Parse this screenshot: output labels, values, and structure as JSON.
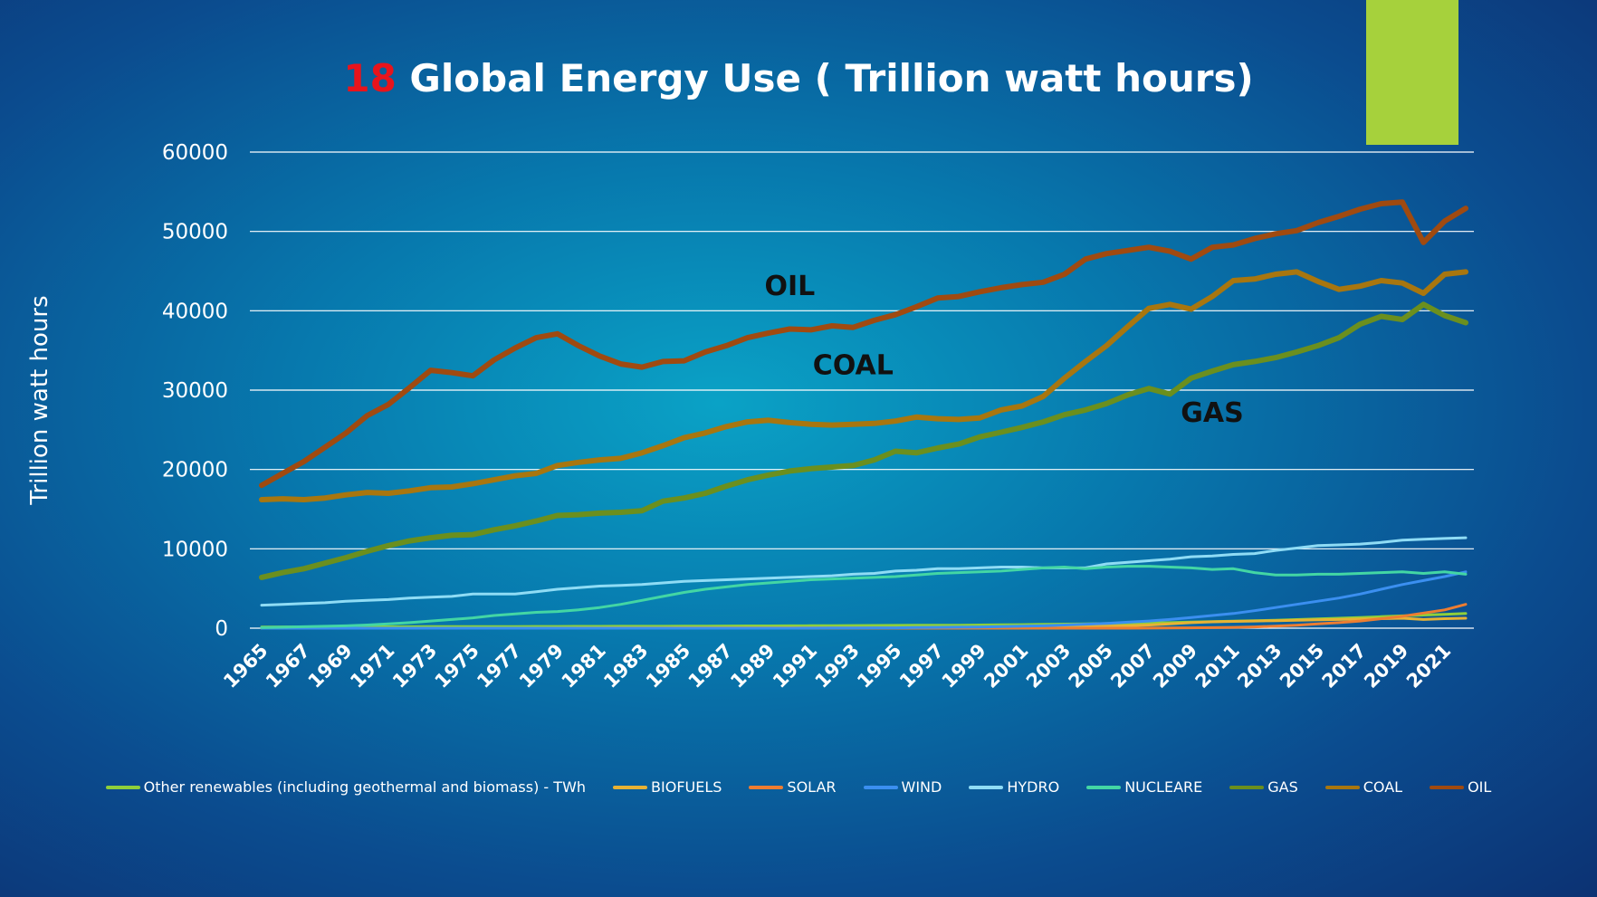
{
  "title": {
    "number": "18",
    "text": " Global Energy Use ( Trillion watt hours)"
  },
  "chart_data": {
    "type": "line",
    "title": "18 Global Energy Use ( Trillion watt hours)",
    "xlabel": "",
    "ylabel": "Trillion watt hours",
    "ylim": [
      0,
      60000
    ],
    "y_ticks": [
      0,
      10000,
      20000,
      30000,
      40000,
      50000,
      60000
    ],
    "x_tick_labels": [
      "1965",
      "1967",
      "1969",
      "1971",
      "1973",
      "1975",
      "1977",
      "1979",
      "1981",
      "1983",
      "1985",
      "1987",
      "1989",
      "1991",
      "1993",
      "1995",
      "1997",
      "1999",
      "2001",
      "2003",
      "2005",
      "2007",
      "2009",
      "2011",
      "2013",
      "2015",
      "2017",
      "2019",
      "2021"
    ],
    "x_start": 1965,
    "x_end": 2022,
    "grid": "horizontal",
    "legend_position": "bottom",
    "annotations": [
      {
        "text": "OIL",
        "x": 1990,
        "y": 42000
      },
      {
        "text": "COAL",
        "x": 1993,
        "y": 32000
      },
      {
        "text": "GAS",
        "x": 2010,
        "y": 26000
      }
    ],
    "series": [
      {
        "name": "Other renewables (including geothermal and biomass) - TWh",
        "color": "#8fcf3a",
        "width": 3,
        "values": [
          150,
          155,
          160,
          165,
          170,
          175,
          180,
          185,
          190,
          195,
          200,
          205,
          210,
          215,
          220,
          225,
          230,
          235,
          240,
          245,
          250,
          260,
          270,
          280,
          290,
          300,
          310,
          320,
          330,
          340,
          350,
          360,
          370,
          380,
          400,
          420,
          450,
          480,
          510,
          540,
          580,
          620,
          660,
          700,
          760,
          820,
          880,
          940,
          1000,
          1080,
          1160,
          1250,
          1350,
          1450,
          1550,
          1650,
          1750,
          1850
        ]
      },
      {
        "name": "BIOFUELS",
        "color": "#e8b234",
        "width": 3,
        "values": [
          0,
          0,
          0,
          0,
          0,
          0,
          0,
          0,
          0,
          0,
          0,
          0,
          0,
          5,
          10,
          20,
          30,
          40,
          45,
          50,
          60,
          60,
          60,
          60,
          60,
          60,
          60,
          60,
          60,
          60,
          60,
          70,
          80,
          90,
          100,
          100,
          110,
          120,
          150,
          200,
          250,
          300,
          400,
          550,
          700,
          800,
          850,
          900,
          950,
          1000,
          1050,
          1100,
          1150,
          1200,
          1250,
          1100,
          1200,
          1250
        ]
      },
      {
        "name": "SOLAR",
        "color": "#ed7d31",
        "width": 3,
        "values": [
          0,
          0,
          0,
          0,
          0,
          0,
          0,
          0,
          0,
          0,
          0,
          0,
          0,
          0,
          0,
          0,
          0,
          0,
          0,
          0,
          0,
          0,
          0,
          0,
          0,
          0,
          0,
          0,
          0,
          0,
          0,
          0,
          0,
          0,
          0,
          0,
          0,
          0,
          0,
          0,
          0,
          5,
          10,
          20,
          40,
          70,
          100,
          160,
          250,
          380,
          550,
          700,
          900,
          1200,
          1500,
          1900,
          2300,
          3000
        ]
      },
      {
        "name": "WIND",
        "color": "#3b8ff0",
        "width": 3,
        "values": [
          0,
          0,
          0,
          0,
          0,
          0,
          0,
          0,
          0,
          0,
          0,
          0,
          0,
          0,
          0,
          0,
          0,
          0,
          0,
          0,
          0,
          0,
          0,
          0,
          0,
          0,
          10,
          20,
          30,
          40,
          50,
          80,
          100,
          120,
          150,
          200,
          250,
          300,
          400,
          500,
          600,
          750,
          900,
          1100,
          1350,
          1600,
          1850,
          2200,
          2600,
          3000,
          3400,
          3800,
          4300,
          4900,
          5500,
          6000,
          6500,
          7100
        ]
      },
      {
        "name": "HYDRO",
        "color": "#8fdcf5",
        "width": 3,
        "values": [
          2900,
          3000,
          3100,
          3200,
          3400,
          3500,
          3600,
          3800,
          3900,
          4000,
          4300,
          4300,
          4300,
          4600,
          4900,
          5100,
          5300,
          5400,
          5500,
          5700,
          5900,
          6000,
          6100,
          6200,
          6300,
          6400,
          6500,
          6600,
          6800,
          6900,
          7200,
          7300,
          7500,
          7500,
          7600,
          7700,
          7700,
          7600,
          7600,
          7600,
          8100,
          8300,
          8500,
          8700,
          9000,
          9100,
          9300,
          9400,
          9800,
          10100,
          10400,
          10500,
          10600,
          10800,
          11100,
          11200,
          11300,
          11400
        ]
      },
      {
        "name": "NUCLEARE",
        "color": "#43d6a4",
        "width": 3,
        "values": [
          70,
          120,
          180,
          240,
          300,
          400,
          550,
          700,
          900,
          1100,
          1300,
          1600,
          1800,
          2000,
          2100,
          2300,
          2600,
          3000,
          3500,
          4000,
          4500,
          4900,
          5200,
          5500,
          5700,
          5900,
          6100,
          6200,
          6300,
          6400,
          6500,
          6700,
          6900,
          7000,
          7100,
          7200,
          7400,
          7600,
          7700,
          7500,
          7700,
          7800,
          7800,
          7700,
          7600,
          7400,
          7500,
          7000,
          6700,
          6700,
          6800,
          6800,
          6900,
          7000,
          7100,
          6900,
          7100,
          6800
        ]
      },
      {
        "name": "GAS",
        "color": "#6b8f1e",
        "width": 6,
        "values": [
          6400,
          7000,
          7500,
          8200,
          8900,
          9700,
          10400,
          11000,
          11400,
          11700,
          11800,
          12400,
          12900,
          13500,
          14200,
          14300,
          14500,
          14600,
          14800,
          16000,
          16400,
          17000,
          17900,
          18700,
          19300,
          19800,
          20100,
          20300,
          20500,
          21200,
          22300,
          22100,
          22700,
          23200,
          24100,
          24700,
          25300,
          26000,
          26900,
          27500,
          28300,
          29400,
          30200,
          29500,
          31500,
          32400,
          33200,
          33600,
          34100,
          34800,
          35600,
          36600,
          38300,
          39300,
          38900,
          40800,
          39400,
          38500
        ]
      },
      {
        "name": "COAL",
        "color": "#a8760f",
        "width": 6,
        "values": [
          16200,
          16300,
          16200,
          16400,
          16800,
          17100,
          17000,
          17300,
          17700,
          17800,
          18200,
          18700,
          19200,
          19500,
          20500,
          20900,
          21200,
          21400,
          22100,
          23000,
          24000,
          24600,
          25400,
          26000,
          26200,
          25900,
          25700,
          25600,
          25700,
          25800,
          26100,
          26600,
          26400,
          26300,
          26500,
          27500,
          28000,
          29200,
          31500,
          33600,
          35600,
          38000,
          40300,
          40800,
          40200,
          41800,
          43800,
          44000,
          44600,
          44900,
          43700,
          42700,
          43100,
          43800,
          43500,
          42200,
          44600,
          44900
        ]
      },
      {
        "name": "OIL",
        "color": "#a04a10",
        "width": 6,
        "values": [
          18000,
          19500,
          21000,
          22800,
          24600,
          26800,
          28200,
          30300,
          32500,
          32200,
          31800,
          33800,
          35300,
          36600,
          37100,
          35600,
          34300,
          33300,
          32900,
          33600,
          33700,
          34800,
          35600,
          36600,
          37200,
          37700,
          37600,
          38100,
          37900,
          38800,
          39500,
          40500,
          41600,
          41800,
          42400,
          42900,
          43300,
          43600,
          44600,
          46500,
          47200,
          47600,
          48000,
          47500,
          46500,
          48000,
          48300,
          49100,
          49700,
          50100,
          51100,
          51900,
          52800,
          53500,
          53700,
          48600,
          51300,
          52900
        ]
      }
    ]
  }
}
